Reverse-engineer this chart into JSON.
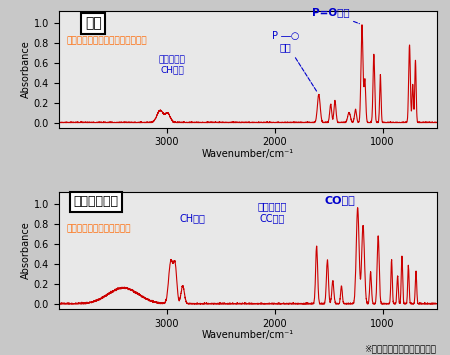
{
  "title1": "シミ",
  "title2": "モールド樹脂",
  "xlabel": "Wavenumber/cm⁻¹",
  "ylabel": "Absorbance",
  "spectrum_color": "#cc0000",
  "label_color_orange": "#ff6600",
  "label_color_blue": "#0000cc",
  "background_color": "#e8e8e8",
  "fig_background": "#c8c8c8",
  "note": "※前処理にてフィラーを除去",
  "spectrum1_name": "トリフェニルホスフィンオキシド",
  "spectrum2_name": "ノボラック型エポキシ樹脂",
  "annot1_po": "P=O伸縮",
  "annot1_p": "P ―○\n伸縮",
  "annot1_ch": "ベンゼン環\nCH伸縮",
  "annot2_co": "CO伸縮",
  "annot2_cc": "ベンゼン環\nCC伸縮",
  "annot2_ch": "CH伸縮"
}
